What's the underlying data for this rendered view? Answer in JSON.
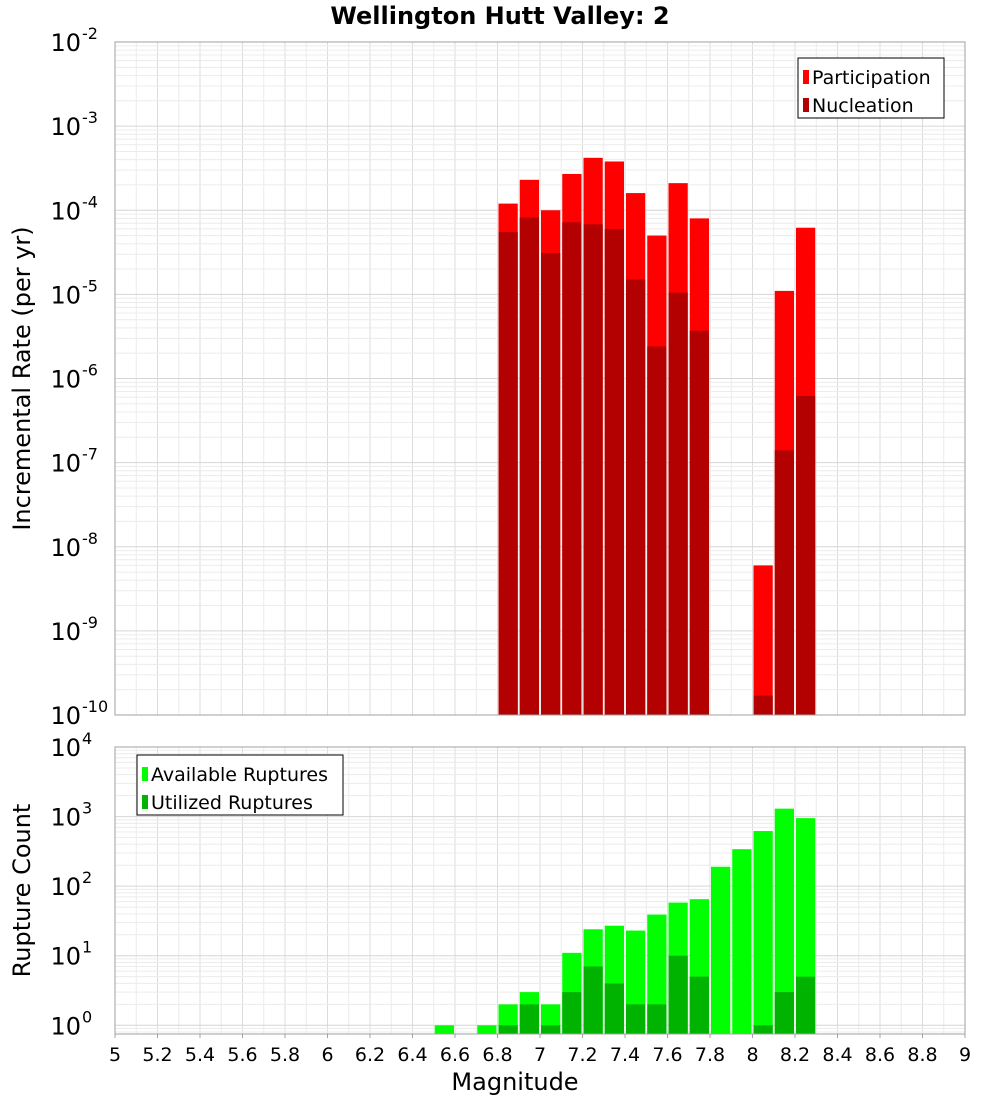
{
  "chart_data": [
    {
      "type": "bar",
      "title": "Wellington Hutt Valley: 2",
      "xlabel": "",
      "ylabel": "Incremental Rate (per yr)",
      "yscale": "log",
      "ylim": [
        1e-10,
        0.01
      ],
      "xlim": [
        5,
        9
      ],
      "y_tick_labels": [
        {
          "base": "10",
          "exp": "-10"
        },
        {
          "base": "10",
          "exp": "-9"
        },
        {
          "base": "10",
          "exp": "-8"
        },
        {
          "base": "10",
          "exp": "-7"
        },
        {
          "base": "10",
          "exp": "-6"
        },
        {
          "base": "10",
          "exp": "-5"
        },
        {
          "base": "10",
          "exp": "-4"
        },
        {
          "base": "10",
          "exp": "-3"
        },
        {
          "base": "10",
          "exp": "-2"
        }
      ],
      "grid": true,
      "legend_position": "top-right",
      "bin_width": 0.1,
      "x": [
        6.85,
        6.95,
        7.05,
        7.15,
        7.25,
        7.35,
        7.45,
        7.55,
        7.65,
        7.75,
        8.05,
        8.15,
        8.25
      ],
      "series": [
        {
          "name": "Participation",
          "color": "#ff0000",
          "values": [
            0.00012,
            0.00023,
            0.0001,
            0.00027,
            0.00042,
            0.00038,
            0.00016,
            5e-05,
            0.00021,
            8e-05,
            6e-09,
            1.1e-05,
            6.2e-05
          ]
        },
        {
          "name": "Nucleation",
          "color": "#b30000",
          "values": [
            5.5e-05,
            8.2e-05,
            3.1e-05,
            7.2e-05,
            6.8e-05,
            6e-05,
            1.5e-05,
            2.4e-06,
            1.05e-05,
            3.7e-06,
            1.7e-10,
            1.4e-07,
            6.2e-07
          ]
        }
      ]
    },
    {
      "type": "bar",
      "title": "",
      "xlabel": "Magnitude",
      "ylabel": "Rupture Count",
      "yscale": "log",
      "ylim": [
        0.75,
        10000
      ],
      "xlim": [
        5,
        9
      ],
      "y_tick_labels": [
        {
          "value": 1,
          "base": "10",
          "exp": "0"
        },
        {
          "value": 10,
          "base": "10",
          "exp": "1"
        },
        {
          "value": 100,
          "base": "10",
          "exp": "2"
        },
        {
          "value": 1000,
          "base": "10",
          "exp": "3"
        },
        {
          "value": 10000,
          "base": "10",
          "exp": "4"
        }
      ],
      "x_tick_labels": [
        "5",
        "5.2",
        "5.4",
        "5.6",
        "5.8",
        "6",
        "6.2",
        "6.4",
        "6.6",
        "6.8",
        "7",
        "7.2",
        "7.4",
        "7.6",
        "7.8",
        "8",
        "8.2",
        "8.4",
        "8.6",
        "8.8",
        "9"
      ],
      "grid": true,
      "legend_position": "top-left",
      "bin_width": 0.1,
      "x": [
        6.55,
        6.75,
        6.85,
        6.95,
        7.05,
        7.15,
        7.25,
        7.35,
        7.45,
        7.55,
        7.65,
        7.75,
        7.85,
        7.95,
        8.05,
        8.15,
        8.25
      ],
      "series": [
        {
          "name": "Available Ruptures",
          "color": "#00ff00",
          "values": [
            1,
            1,
            2,
            3,
            2,
            11,
            24,
            27,
            23,
            39,
            58,
            65,
            190,
            340,
            620,
            1300,
            950
          ]
        },
        {
          "name": "Utilized Ruptures",
          "color": "#00b300",
          "values": [
            0,
            0,
            1,
            2,
            1,
            3,
            7,
            4,
            2,
            2,
            10,
            5,
            0,
            0,
            1,
            3,
            5
          ]
        }
      ]
    }
  ]
}
